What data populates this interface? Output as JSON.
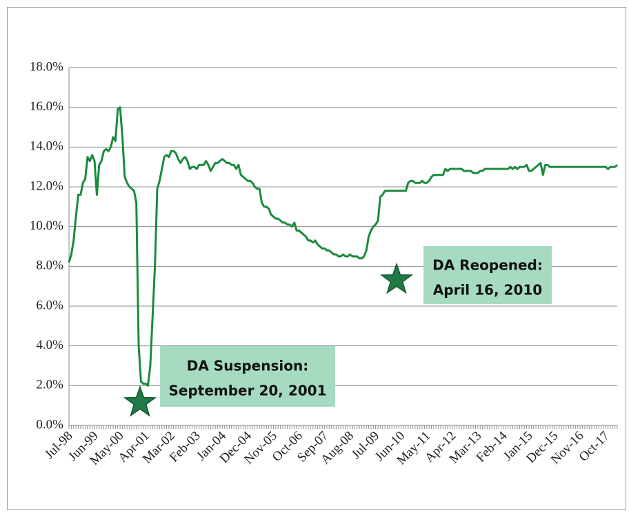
{
  "chart_data": {
    "type": "line",
    "categories": [
      "Jul-98",
      null,
      null,
      null,
      null,
      null,
      null,
      null,
      null,
      null,
      null,
      "Jun-99",
      null,
      null,
      null,
      null,
      null,
      null,
      null,
      null,
      null,
      null,
      "May-00",
      null,
      null,
      null,
      null,
      null,
      null,
      null,
      null,
      null,
      null,
      "Apr-01",
      null,
      null,
      null,
      null,
      null,
      null,
      null,
      null,
      null,
      null,
      "Mar-02",
      null,
      null,
      null,
      null,
      null,
      null,
      null,
      null,
      null,
      null,
      "Feb-03",
      null,
      null,
      null,
      null,
      null,
      null,
      null,
      null,
      null,
      null,
      "Jan-04",
      null,
      null,
      null,
      null,
      null,
      null,
      null,
      null,
      null,
      null,
      "Dec-04",
      null,
      null,
      null,
      null,
      null,
      null,
      null,
      null,
      null,
      null,
      "Nov-05",
      null,
      null,
      null,
      null,
      null,
      null,
      null,
      null,
      null,
      null,
      "Oct-06",
      null,
      null,
      null,
      null,
      null,
      null,
      null,
      null,
      null,
      null,
      "Sep-07",
      null,
      null,
      null,
      null,
      null,
      null,
      null,
      null,
      null,
      null,
      "Aug-08",
      null,
      null,
      null,
      null,
      null,
      null,
      null,
      null,
      null,
      null,
      "Jul-09",
      null,
      null,
      null,
      null,
      null,
      null,
      null,
      null,
      null,
      null,
      "Jun-10",
      null,
      null,
      null,
      null,
      null,
      null,
      null,
      null,
      null,
      null,
      "May-11",
      null,
      null,
      null,
      null,
      null,
      null,
      null,
      null,
      null,
      null,
      "Apr-12",
      null,
      null,
      null,
      null,
      null,
      null,
      null,
      null,
      null,
      null,
      "Mar-13",
      null,
      null,
      null,
      null,
      null,
      null,
      null,
      null,
      null,
      null,
      "Feb-14",
      null,
      null,
      null,
      null,
      null,
      null,
      null,
      null,
      null,
      null,
      "Jan-15",
      null,
      null,
      null,
      null,
      null,
      null,
      null,
      null,
      null,
      null,
      "Dec-15",
      null,
      null,
      null,
      null,
      null,
      null,
      null,
      null,
      null,
      null,
      "Nov-16",
      null,
      null,
      null,
      null,
      null,
      null,
      null,
      null,
      null,
      null,
      "Oct-17",
      null,
      null,
      null,
      null,
      null
    ],
    "values": [
      8.2,
      8.6,
      9.3,
      10.5,
      11.6,
      11.6,
      12.2,
      12.4,
      13.5,
      13.3,
      13.6,
      13.3,
      11.6,
      13.1,
      13.3,
      13.8,
      13.9,
      13.8,
      14.0,
      14.5,
      14.3,
      15.9,
      16.0,
      14.5,
      12.5,
      12.2,
      12.0,
      11.9,
      11.8,
      11.2,
      4.0,
      2.2,
      2.1,
      2.1,
      2.0,
      3.0,
      5.5,
      8.0,
      11.9,
      12.3,
      12.9,
      13.5,
      13.6,
      13.5,
      13.8,
      13.8,
      13.7,
      13.4,
      13.2,
      13.4,
      13.5,
      13.3,
      12.9,
      13.0,
      13.0,
      12.9,
      13.1,
      13.1,
      13.1,
      13.3,
      13.1,
      12.8,
      13.0,
      13.2,
      13.2,
      13.3,
      13.4,
      13.3,
      13.2,
      13.2,
      13.1,
      13.1,
      12.9,
      13.1,
      12.6,
      12.5,
      12.4,
      12.3,
      12.3,
      12.2,
      12.0,
      11.9,
      11.9,
      11.2,
      11.0,
      11.0,
      10.9,
      10.6,
      10.5,
      10.4,
      10.4,
      10.3,
      10.2,
      10.2,
      10.1,
      10.1,
      10.0,
      10.2,
      9.8,
      9.8,
      9.7,
      9.6,
      9.5,
      9.3,
      9.3,
      9.2,
      9.3,
      9.1,
      9.0,
      8.9,
      8.9,
      8.8,
      8.8,
      8.7,
      8.6,
      8.6,
      8.5,
      8.5,
      8.6,
      8.5,
      8.5,
      8.6,
      8.5,
      8.5,
      8.5,
      8.4,
      8.4,
      8.5,
      8.8,
      9.5,
      9.8,
      10.0,
      10.1,
      10.3,
      11.5,
      11.6,
      11.8,
      11.8,
      11.8,
      11.8,
      11.8,
      11.8,
      11.8,
      11.8,
      11.8,
      11.8,
      12.2,
      12.3,
      12.3,
      12.2,
      12.2,
      12.2,
      12.3,
      12.2,
      12.2,
      12.3,
      12.5,
      12.6,
      12.6,
      12.6,
      12.6,
      12.6,
      12.9,
      12.8,
      12.9,
      12.9,
      12.9,
      12.9,
      12.9,
      12.9,
      12.8,
      12.8,
      12.8,
      12.8,
      12.7,
      12.7,
      12.7,
      12.8,
      12.8,
      12.9,
      12.9,
      12.9,
      12.9,
      12.9,
      12.9,
      12.9,
      12.9,
      12.9,
      12.9,
      12.9,
      13.0,
      12.9,
      13.0,
      12.9,
      13.0,
      13.0,
      13.0,
      13.1,
      12.8,
      12.8,
      12.9,
      13.0,
      13.1,
      13.2,
      12.6,
      13.1,
      13.1,
      13.0,
      13.0,
      13.0,
      13.0,
      13.0,
      13.0,
      13.0,
      13.0,
      13.0,
      13.0,
      13.0,
      13.0,
      13.0,
      13.0,
      13.0,
      13.0,
      13.0,
      13.0,
      13.0,
      13.0,
      13.0,
      13.0,
      13.0,
      13.0,
      13.0,
      12.9,
      13.0,
      13.0,
      13.0,
      13.1
    ],
    "color": "#1a8a3c",
    "ylim": [
      0,
      18
    ],
    "yticks": [
      {
        "value": 0,
        "label": "0.0%"
      },
      {
        "value": 2,
        "label": "2.0%"
      },
      {
        "value": 4,
        "label": "4.0%"
      },
      {
        "value": 6,
        "label": "6.0%"
      },
      {
        "value": 8,
        "label": "8.0%"
      },
      {
        "value": 10,
        "label": "10.0%"
      },
      {
        "value": 12,
        "label": "12.0%"
      },
      {
        "value": 14,
        "label": "14.0%"
      },
      {
        "value": 16,
        "label": "16.0%"
      },
      {
        "value": 18,
        "label": "18.0%"
      }
    ],
    "grid": true,
    "annotations": [
      [
        "DA Suspension:",
        "September 20, 2001"
      ],
      [
        "DA Reopened:",
        "April 16, 2010"
      ]
    ]
  }
}
